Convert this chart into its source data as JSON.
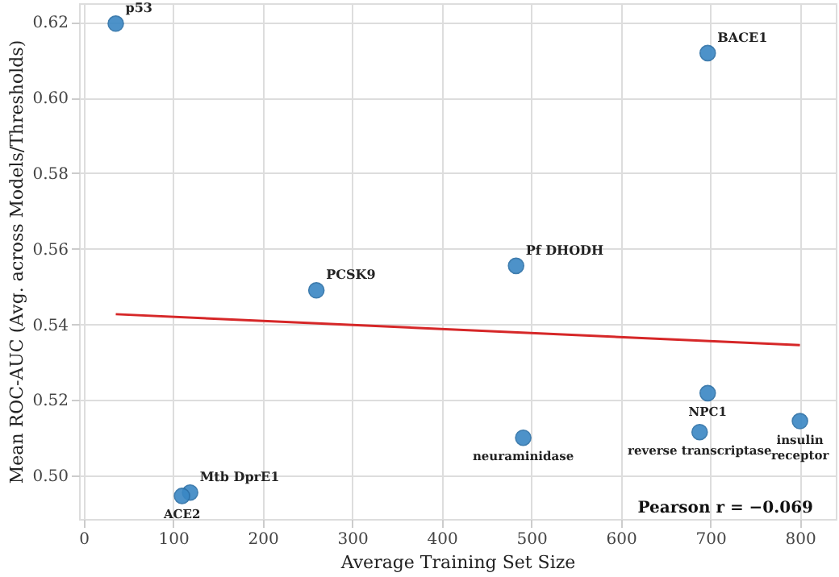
{
  "chart_data": {
    "type": "scatter",
    "xlabel": "Average Training Set Size",
    "ylabel": "Mean ROC-AUC (Avg. across Models/Thresholds)",
    "xlim": [
      -5,
      840
    ],
    "ylim": [
      0.4885,
      0.625
    ],
    "xticks": [
      0,
      100,
      200,
      300,
      400,
      500,
      600,
      700,
      800
    ],
    "yticks": [
      {
        "value": 0.5,
        "label": "0.50"
      },
      0.52,
      0.54,
      0.56,
      0.58,
      {
        "value": 0.6,
        "label": "0.60"
      },
      0.62
    ],
    "grid": true,
    "series": [
      {
        "marker": "circle",
        "color": "#3a87c4",
        "x": [
          36,
          697,
          260,
          483,
          119,
          110,
          491,
          688,
          697,
          800
        ],
        "values": [
          0.6196,
          0.6118,
          0.549,
          0.5555,
          0.4955,
          0.4946,
          0.51,
          0.5115,
          0.5218,
          0.5144
        ]
      },
      {
        "type": "line",
        "color": "#d62728",
        "x": [
          36,
          800
        ],
        "values": [
          0.5427,
          0.5345
        ]
      }
    ],
    "annotations": [
      {
        "text": "p53",
        "x": 36,
        "y": 0.6196
      },
      {
        "text": "BACE1",
        "x": 697,
        "y": 0.6118
      },
      {
        "text": "PCSK9",
        "x": 260,
        "y": 0.549
      },
      {
        "text": "Pf DHODH",
        "x": 483,
        "y": 0.5555
      },
      {
        "text": "Mtb DprE1",
        "x": 119,
        "y": 0.4955
      },
      {
        "text": "ACE2",
        "x": 110,
        "y": 0.4946
      },
      {
        "text": "neuraminidase",
        "x": 491,
        "y": 0.51
      },
      {
        "text": "reverse transcriptase",
        "x": 688,
        "y": 0.5115
      },
      {
        "text": "NPC1",
        "x": 697,
        "y": 0.5218
      },
      {
        "text": "insulin receptor",
        "x": 800,
        "y": 0.5144
      },
      "Pearson r = −0.069"
    ]
  }
}
